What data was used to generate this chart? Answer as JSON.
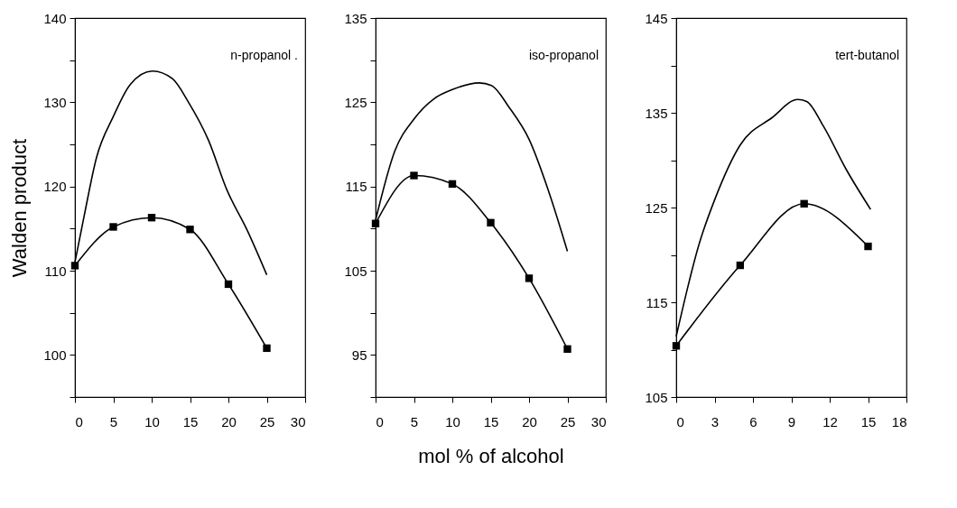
{
  "chart_data": [
    {
      "type": "line",
      "ylabel": "Walden product",
      "annotations": [
        "n-propanol ."
      ],
      "xlim": [
        0,
        30
      ],
      "xticks": [
        0,
        5,
        10,
        15,
        20,
        25,
        30
      ],
      "ylim": [
        95,
        140
      ],
      "yticks": [
        {
          "value": 95,
          "label": null
        },
        100,
        {
          "value": 105,
          "label": null
        },
        110,
        {
          "value": 115,
          "label": null
        },
        120,
        {
          "value": 125,
          "label": null
        },
        130,
        {
          "value": 135,
          "label": null
        },
        140
      ],
      "grid": false,
      "series": [
        {
          "color": "#000000",
          "marker": "none",
          "x": [
            0,
            1.2,
            2.8,
            5,
            7.2,
            10.1,
            12.7,
            14.8,
            17.4,
            19.8,
            22.5,
            25
          ],
          "values": [
            111,
            116.5,
            123.4,
            128.3,
            132.1,
            133.7,
            132.8,
            130,
            125.5,
            119.6,
            114.7,
            109.5
          ]
        },
        {
          "color": "#000000",
          "marker": "square",
          "x": [
            0,
            5,
            10,
            15,
            20,
            25
          ],
          "values": [
            110.6,
            115.2,
            116.3,
            114.9,
            108.4,
            100.8
          ]
        }
      ]
    },
    {
      "type": "line",
      "xlabel": "mol %  of alcohol",
      "annotations": [
        "iso-propanol"
      ],
      "xlim": [
        0,
        30
      ],
      "xticks": [
        0,
        5,
        10,
        15,
        20,
        25,
        30
      ],
      "ylim": [
        90,
        135
      ],
      "yticks": [
        {
          "value": 90,
          "label": null
        },
        95,
        {
          "value": 100,
          "label": null
        },
        105,
        {
          "value": 110,
          "label": null
        },
        115,
        {
          "value": 120,
          "label": null
        },
        125,
        {
          "value": 130,
          "label": null
        },
        135
      ],
      "grid": false,
      "series": [
        {
          "color": "#000000",
          "marker": "none",
          "x": [
            0,
            2.5,
            5,
            7.6,
            10,
            13.5,
            15.1,
            17.4,
            20,
            22.6,
            25
          ],
          "values": [
            111,
            119.2,
            123,
            125.4,
            126.5,
            127.3,
            127,
            124.4,
            120.6,
            114.3,
            107.3
          ]
        },
        {
          "color": "#000000",
          "marker": "square",
          "x": [
            0,
            5,
            10,
            15,
            20,
            25
          ],
          "values": [
            110.6,
            116.3,
            115.3,
            110.7,
            104.1,
            95.7
          ]
        }
      ]
    },
    {
      "type": "line",
      "annotations": [
        "tert-butanol"
      ],
      "xlim": [
        0,
        18
      ],
      "xticks": [
        0,
        3,
        6,
        9,
        12,
        15,
        18
      ],
      "ylim": [
        105,
        145
      ],
      "yticks": [
        105,
        {
          "value": 110,
          "label": null
        },
        115,
        {
          "value": 120,
          "label": null
        },
        125,
        {
          "value": 130,
          "label": null
        },
        135,
        {
          "value": 140,
          "label": null
        },
        145
      ],
      "grid": false,
      "series": [
        {
          "color": "#000000",
          "marker": "none",
          "x": [
            0,
            1.8,
            3,
            5,
            7.5,
            9.5,
            10.2,
            11.5,
            13.3,
            15.2
          ],
          "values": [
            111.4,
            121.2,
            125.8,
            131.6,
            134.5,
            136.4,
            136.2,
            133.6,
            129,
            124.8
          ]
        },
        {
          "color": "#000000",
          "marker": "square",
          "x": [
            0,
            5,
            10,
            15
          ],
          "values": [
            110.4,
            118.9,
            125.4,
            120.9
          ]
        }
      ]
    }
  ]
}
